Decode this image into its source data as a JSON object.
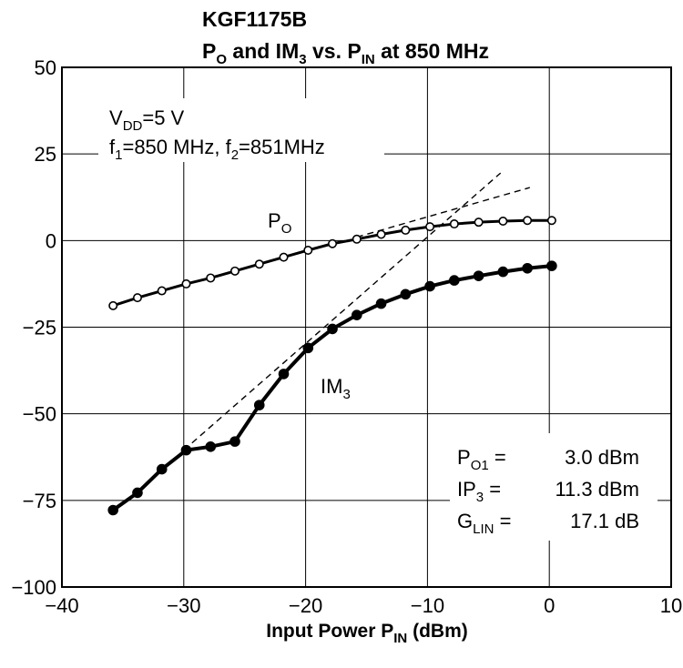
{
  "chart_data": {
    "type": "line",
    "title": {
      "line1": "KGF1175B",
      "line2": {
        "p": "P",
        "o": "O",
        "mid": " and IM",
        "three": "3",
        "vs": " vs. P",
        "in": "IN",
        "end": " at 850 MHz"
      }
    },
    "xlabel": {
      "main": "Input Power  P",
      "sub": "IN",
      "unit": "  (dBm)"
    },
    "xlim": [
      -40,
      10
    ],
    "ylim": [
      -100,
      50
    ],
    "xticks": [
      -40,
      -30,
      -20,
      -10,
      0,
      10
    ],
    "yticks": [
      50,
      25,
      0,
      -25,
      -50,
      -75,
      -100
    ],
    "xtick_labels": [
      "−40",
      "−30",
      "−20",
      "−10",
      "0",
      "10"
    ],
    "ytick_labels": [
      "50",
      "25",
      "0",
      "−25",
      "−50",
      "−75",
      "−100"
    ],
    "grid": true,
    "conditions": {
      "vdd": {
        "main": "V",
        "sub": "DD",
        "value": "=5 V"
      },
      "freq": {
        "f1": "f",
        "s1": "1",
        "v1": "=850 MHz, f",
        "s2": "2",
        "v2": "=851MHz"
      }
    },
    "series": [
      {
        "name": "P_O",
        "label": {
          "main": "P",
          "sub": "O"
        },
        "marker": "open-circle",
        "x": [
          -35.8,
          -33.8,
          -31.8,
          -29.8,
          -27.8,
          -25.8,
          -23.8,
          -21.8,
          -19.8,
          -17.8,
          -15.8,
          -13.8,
          -11.8,
          -9.8,
          -7.8,
          -5.8,
          -3.8,
          -1.8,
          0.2
        ],
        "y": [
          -18.8,
          -16.5,
          -14.5,
          -12.5,
          -10.8,
          -8.8,
          -6.8,
          -4.8,
          -2.8,
          -0.9,
          0.4,
          1.8,
          3.0,
          4.0,
          4.8,
          5.3,
          5.6,
          5.8,
          5.8
        ]
      },
      {
        "name": "IM_3",
        "label": {
          "main": "IM",
          "sub": "3"
        },
        "marker": "filled-circle",
        "x": [
          -35.8,
          -33.8,
          -31.8,
          -29.8,
          -27.8,
          -25.8,
          -23.8,
          -21.8,
          -19.8,
          -17.8,
          -15.8,
          -13.8,
          -11.8,
          -9.8,
          -7.8,
          -5.8,
          -3.8,
          -1.8,
          0.2
        ],
        "y": [
          -77.8,
          -72.8,
          -66.0,
          -60.5,
          -59.5,
          -58.0,
          -47.5,
          -38.5,
          -31.0,
          -25.5,
          -21.5,
          -18.2,
          -15.5,
          -13.2,
          -11.5,
          -10.2,
          -9.0,
          -8.0,
          -7.3
        ]
      }
    ],
    "extrapolations": [
      {
        "name": "P_O linear extrapolation",
        "x": [
          -15.8,
          -1.6
        ],
        "y": [
          1.0,
          15.3
        ]
      },
      {
        "name": "IM_3 linear extrapolation",
        "x": [
          -30.0,
          -4.0
        ],
        "y": [
          -60.5,
          19.5
        ]
      }
    ],
    "results": [
      {
        "main": "P",
        "sub": "O1",
        "eq": " =",
        "value": "3.0 dBm"
      },
      {
        "main": "IP",
        "sub": "3",
        "eq": " =",
        "value": "11.3 dBm"
      },
      {
        "main": "G",
        "sub": "LIN",
        "eq": " =",
        "value": "17.1 dB"
      }
    ]
  }
}
